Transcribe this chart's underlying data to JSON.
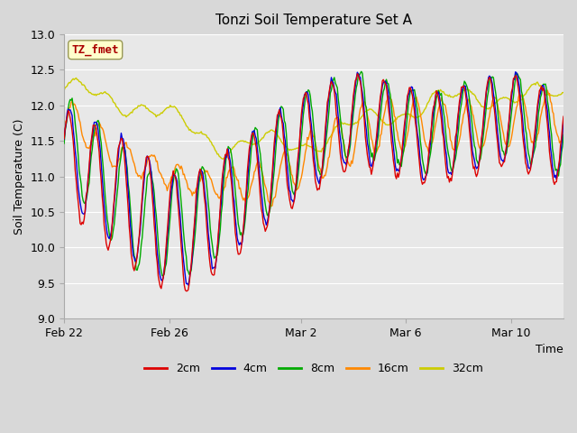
{
  "title": "Tonzi Soil Temperature Set A",
  "ylabel": "Soil Temperature (C)",
  "xlabel": "Time",
  "ylim": [
    9.0,
    13.0
  ],
  "yticks": [
    9.0,
    9.5,
    10.0,
    10.5,
    11.0,
    11.5,
    12.0,
    12.5,
    13.0
  ],
  "xtick_labels": [
    "Feb 22",
    "Feb 26",
    "Mar 2",
    "Mar 6",
    "Mar 10"
  ],
  "xtick_positions": [
    0,
    4,
    9,
    13,
    17
  ],
  "xlim": [
    0,
    19
  ],
  "legend_entries": [
    "2cm",
    "4cm",
    "8cm",
    "16cm",
    "32cm"
  ],
  "line_colors": [
    "#dd0000",
    "#0000dd",
    "#00aa00",
    "#ff8800",
    "#cccc00"
  ],
  "fig_bg": "#d8d8d8",
  "plot_bg": "#e8e8e8",
  "grid_color": "#ffffff",
  "annotation_text": "TZ_fmet",
  "annotation_bg": "#ffffcc",
  "annotation_border": "#999955",
  "annotation_color": "#aa0000",
  "figsize": [
    6.4,
    4.8
  ],
  "dpi": 100
}
